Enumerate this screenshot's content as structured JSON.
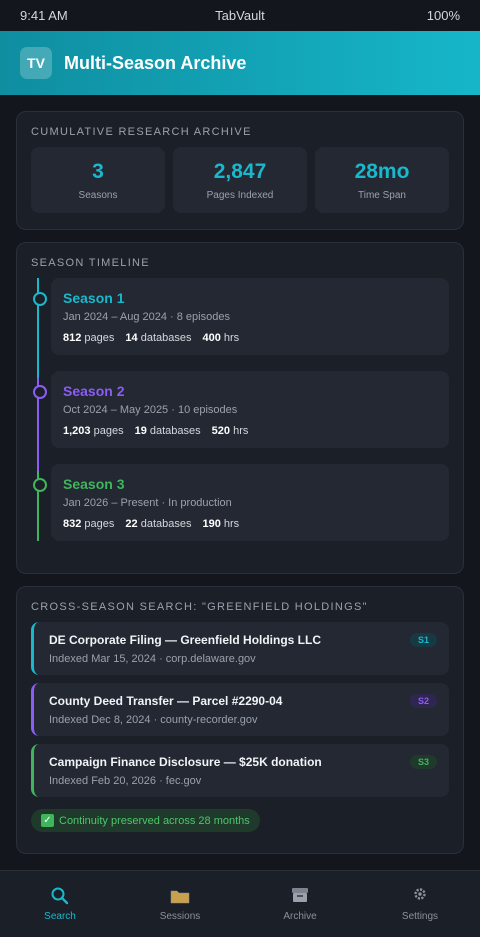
{
  "status_bar": {
    "time": "9:41 AM",
    "carrier": "TabVault",
    "battery": "100%"
  },
  "header": {
    "logo_text": "TV",
    "title": "Multi-Season Archive"
  },
  "summary": {
    "title": "CUMULATIVE RESEARCH ARCHIVE",
    "stats": [
      {
        "value": "3",
        "label": "Seasons"
      },
      {
        "value": "2,847",
        "label": "Pages Indexed"
      },
      {
        "value": "28mo",
        "label": "Time Span"
      }
    ]
  },
  "timeline": {
    "title": "SEASON TIMELINE",
    "seasons": [
      {
        "name": "Season 1",
        "color": "#19b8cc",
        "sub": "Jan 2024 – Aug 2024 · 8 episodes",
        "pages": "812",
        "pages_label": "pages",
        "databases": "14",
        "databases_label": "databases",
        "hours": "400",
        "hours_label": "hrs"
      },
      {
        "name": "Season 2",
        "color": "#8b5cf6",
        "sub": "Oct 2024 – May 2025 · 10 episodes",
        "pages": "1,203",
        "pages_label": "pages",
        "databases": "19",
        "databases_label": "databases",
        "hours": "520",
        "hours_label": "hrs"
      },
      {
        "name": "Season 3",
        "color": "#3fb55c",
        "sub": "Jan 2026 – Present · In production",
        "pages": "832",
        "pages_label": "pages",
        "databases": "22",
        "databases_label": "databases",
        "hours": "190",
        "hours_label": "hrs"
      }
    ]
  },
  "search": {
    "title": "CROSS-SEASON SEARCH: \"GREENFIELD HOLDINGS\"",
    "results": [
      {
        "title": "DE Corporate Filing — Greenfield Holdings LLC",
        "meta": "Indexed Mar 15, 2024 · corp.delaware.gov",
        "badge": "S1",
        "color": "#19b8cc"
      },
      {
        "title": "County Deed Transfer — Parcel #2290-04",
        "meta": "Indexed Dec 8, 2024 · county-recorder.gov",
        "badge": "S2",
        "color": "#8b5cf6"
      },
      {
        "title": "Campaign Finance Disclosure — $25K donation",
        "meta": "Indexed Feb 20, 2026 · fec.gov",
        "badge": "S3",
        "color": "#3fb55c"
      }
    ],
    "continuity": "Continuity preserved across 28 months"
  },
  "tabbar": {
    "tabs": [
      {
        "label": "Search",
        "icon": "search-icon"
      },
      {
        "label": "Sessions",
        "icon": "folder-icon"
      },
      {
        "label": "Archive",
        "icon": "archive-icon"
      },
      {
        "label": "Settings",
        "icon": "gear-icon"
      }
    ]
  }
}
